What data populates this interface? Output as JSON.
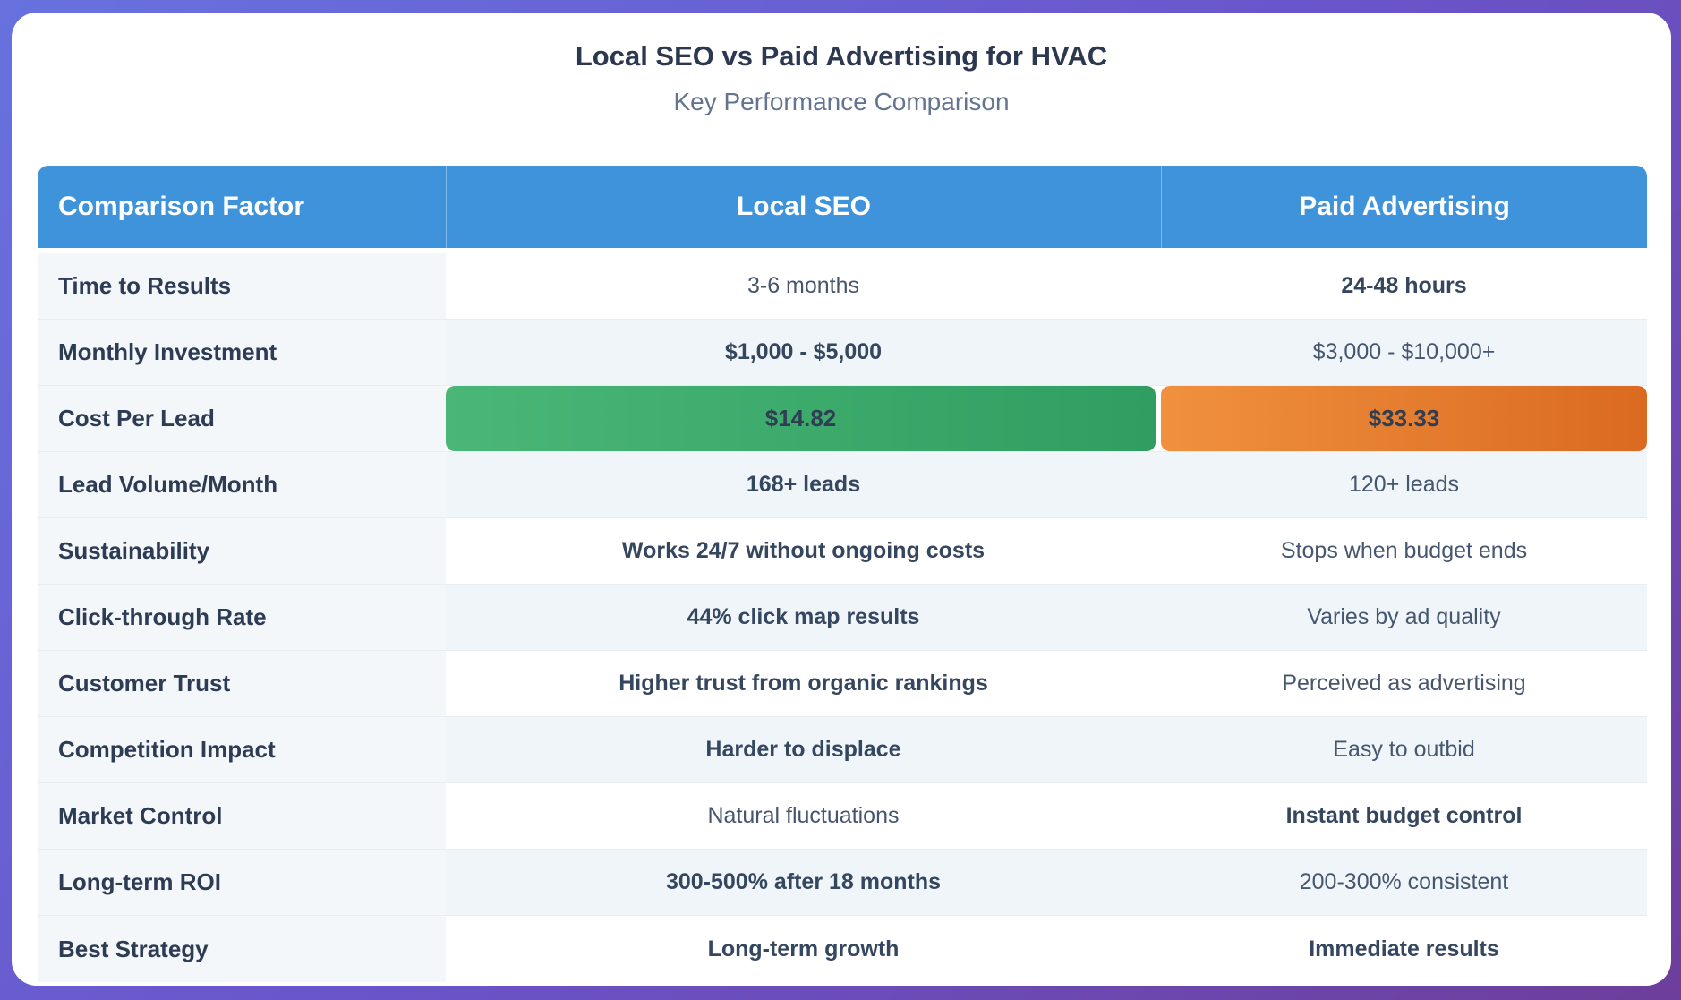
{
  "page": {
    "title": "Local SEO vs Paid Advertising for HVAC",
    "subtitle": "Key Performance Comparison"
  },
  "colors": {
    "background_gradient": [
      "#6772de",
      "#6d3e9b"
    ],
    "card_bg": "#ffffff",
    "header_bg": "#3e93da",
    "header_text": "#ffffff",
    "factor_column_bg": "#f3f7fa",
    "tint_row_bg": "#eff5f9",
    "row_divider": "#e7edf3",
    "label_text": "#2d3c54",
    "value_text": "#46566e",
    "green_bar_gradient": [
      "#4ab777",
      "#2f9e60"
    ],
    "orange_bar_gradient": [
      "#f0913f",
      "#da6a20"
    ],
    "bar_text": "#2f3e52"
  },
  "chart_data": {
    "type": "table",
    "title": "Local SEO vs Paid Advertising for HVAC",
    "subtitle": "Key Performance Comparison",
    "columns": [
      "Comparison Factor",
      "Local SEO",
      "Paid Advertising"
    ],
    "cost_per_lead": {
      "local_seo": 14.82,
      "paid_advertising": 33.33,
      "unit": "USD"
    },
    "rows": [
      {
        "factor": "Time to Results",
        "local_seo": {
          "text": "3-6 months",
          "bold": false
        },
        "paid": {
          "text": "24-48 hours",
          "bold": true
        }
      },
      {
        "factor": "Monthly Investment",
        "local_seo": {
          "text": "$1,000 - $5,000",
          "bold": true
        },
        "paid": {
          "text": "$3,000 - $10,000+",
          "bold": false
        }
      },
      {
        "factor": "Cost Per Lead",
        "local_seo": {
          "text": "$14.82",
          "bold": true,
          "bar": "green"
        },
        "paid": {
          "text": "$33.33",
          "bold": true,
          "bar": "orange"
        }
      },
      {
        "factor": "Lead Volume/Month",
        "local_seo": {
          "text": "168+ leads",
          "bold": true
        },
        "paid": {
          "text": "120+ leads",
          "bold": false
        }
      },
      {
        "factor": "Sustainability",
        "local_seo": {
          "text": "Works 24/7 without ongoing costs",
          "bold": true
        },
        "paid": {
          "text": "Stops when budget ends",
          "bold": false
        }
      },
      {
        "factor": "Click-through Rate",
        "local_seo": {
          "text": "44% click map results",
          "bold": true
        },
        "paid": {
          "text": "Varies by ad quality",
          "bold": false
        }
      },
      {
        "factor": "Customer Trust",
        "local_seo": {
          "text": "Higher trust from organic rankings",
          "bold": true
        },
        "paid": {
          "text": "Perceived as advertising",
          "bold": false
        }
      },
      {
        "factor": "Competition Impact",
        "local_seo": {
          "text": "Harder to displace",
          "bold": true
        },
        "paid": {
          "text": "Easy to outbid",
          "bold": false
        }
      },
      {
        "factor": "Market Control",
        "local_seo": {
          "text": "Natural fluctuations",
          "bold": false
        },
        "paid": {
          "text": "Instant budget control",
          "bold": true
        }
      },
      {
        "factor": "Long-term ROI",
        "local_seo": {
          "text": "300-500% after 18 months",
          "bold": true
        },
        "paid": {
          "text": "200-300% consistent",
          "bold": false
        }
      },
      {
        "factor": "Best Strategy",
        "local_seo": {
          "text": "Long-term growth",
          "bold": true
        },
        "paid": {
          "text": "Immediate results",
          "bold": true
        }
      }
    ]
  }
}
